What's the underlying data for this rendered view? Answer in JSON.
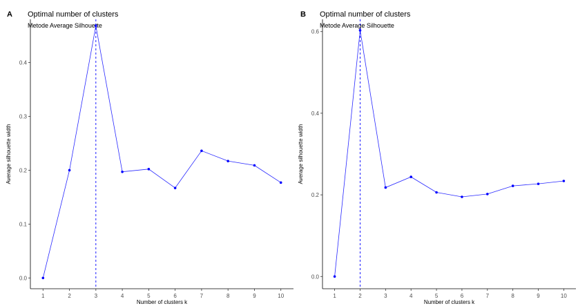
{
  "chart_data": [
    {
      "panel_label": "A",
      "type": "line",
      "title": "Optimal number of clusters",
      "subtitle": "Metode Average Silhouette",
      "xlabel": "Number of clusters k",
      "ylabel": "Average silhouette width",
      "categories": [
        "1",
        "2",
        "3",
        "4",
        "5",
        "6",
        "7",
        "8",
        "9",
        "10"
      ],
      "values": [
        0.0,
        0.2,
        0.468,
        0.197,
        0.202,
        0.167,
        0.236,
        0.217,
        0.209,
        0.177
      ],
      "yticks": [
        0.0,
        0.1,
        0.2,
        0.3,
        0.4
      ],
      "ytick_labels": [
        "0.0",
        "0.1",
        "0.2",
        "0.3",
        "0.4"
      ],
      "ylim": [
        -0.02,
        0.48
      ],
      "optimal_k": "3",
      "grid": false,
      "color": "#0000ff"
    },
    {
      "panel_label": "B",
      "type": "line",
      "title": "Optimal number of clusters",
      "subtitle": "Metode Average Silhouette",
      "xlabel": "Number of clusters k",
      "ylabel": "Average silhouette width",
      "categories": [
        "1",
        "2",
        "3",
        "4",
        "5",
        "6",
        "7",
        "8",
        "9",
        "10"
      ],
      "values": [
        0.0,
        0.603,
        0.218,
        0.244,
        0.206,
        0.195,
        0.202,
        0.222,
        0.227,
        0.234
      ],
      "yticks": [
        0.0,
        0.2,
        0.4,
        0.6
      ],
      "ytick_labels": [
        "0.0",
        "0.2",
        "0.4",
        "0.6"
      ],
      "ylim": [
        -0.03,
        0.63
      ],
      "optimal_k": "2",
      "grid": false,
      "color": "#0000ff"
    }
  ]
}
